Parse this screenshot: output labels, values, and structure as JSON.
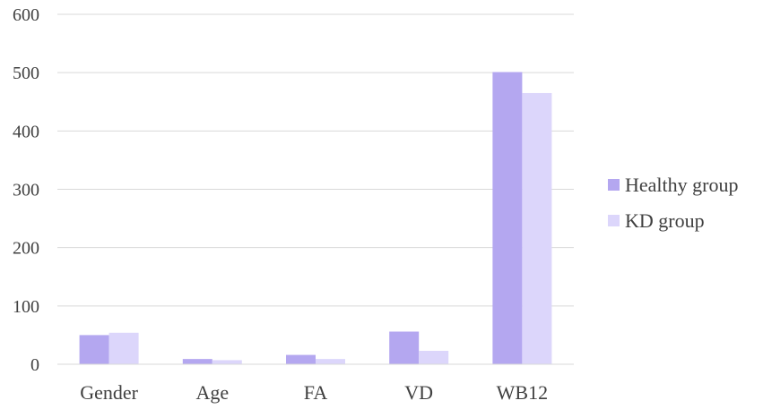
{
  "chart_data": {
    "type": "bar",
    "categories": [
      "Gender",
      "Age",
      "FA",
      "VD",
      "WB12"
    ],
    "series": [
      {
        "name": "Healthy group",
        "values": [
          50,
          9,
          16,
          56,
          501
        ],
        "color": "#b4a7f0"
      },
      {
        "name": "KD group",
        "values": [
          54,
          7,
          9,
          23,
          465
        ],
        "color": "#dcd6fb"
      }
    ],
    "ylim": [
      0,
      600
    ],
    "yticks": [
      0,
      100,
      200,
      300,
      400,
      500,
      600
    ],
    "grid": true,
    "legend_position": "right",
    "title": "",
    "xlabel": "",
    "ylabel": ""
  }
}
